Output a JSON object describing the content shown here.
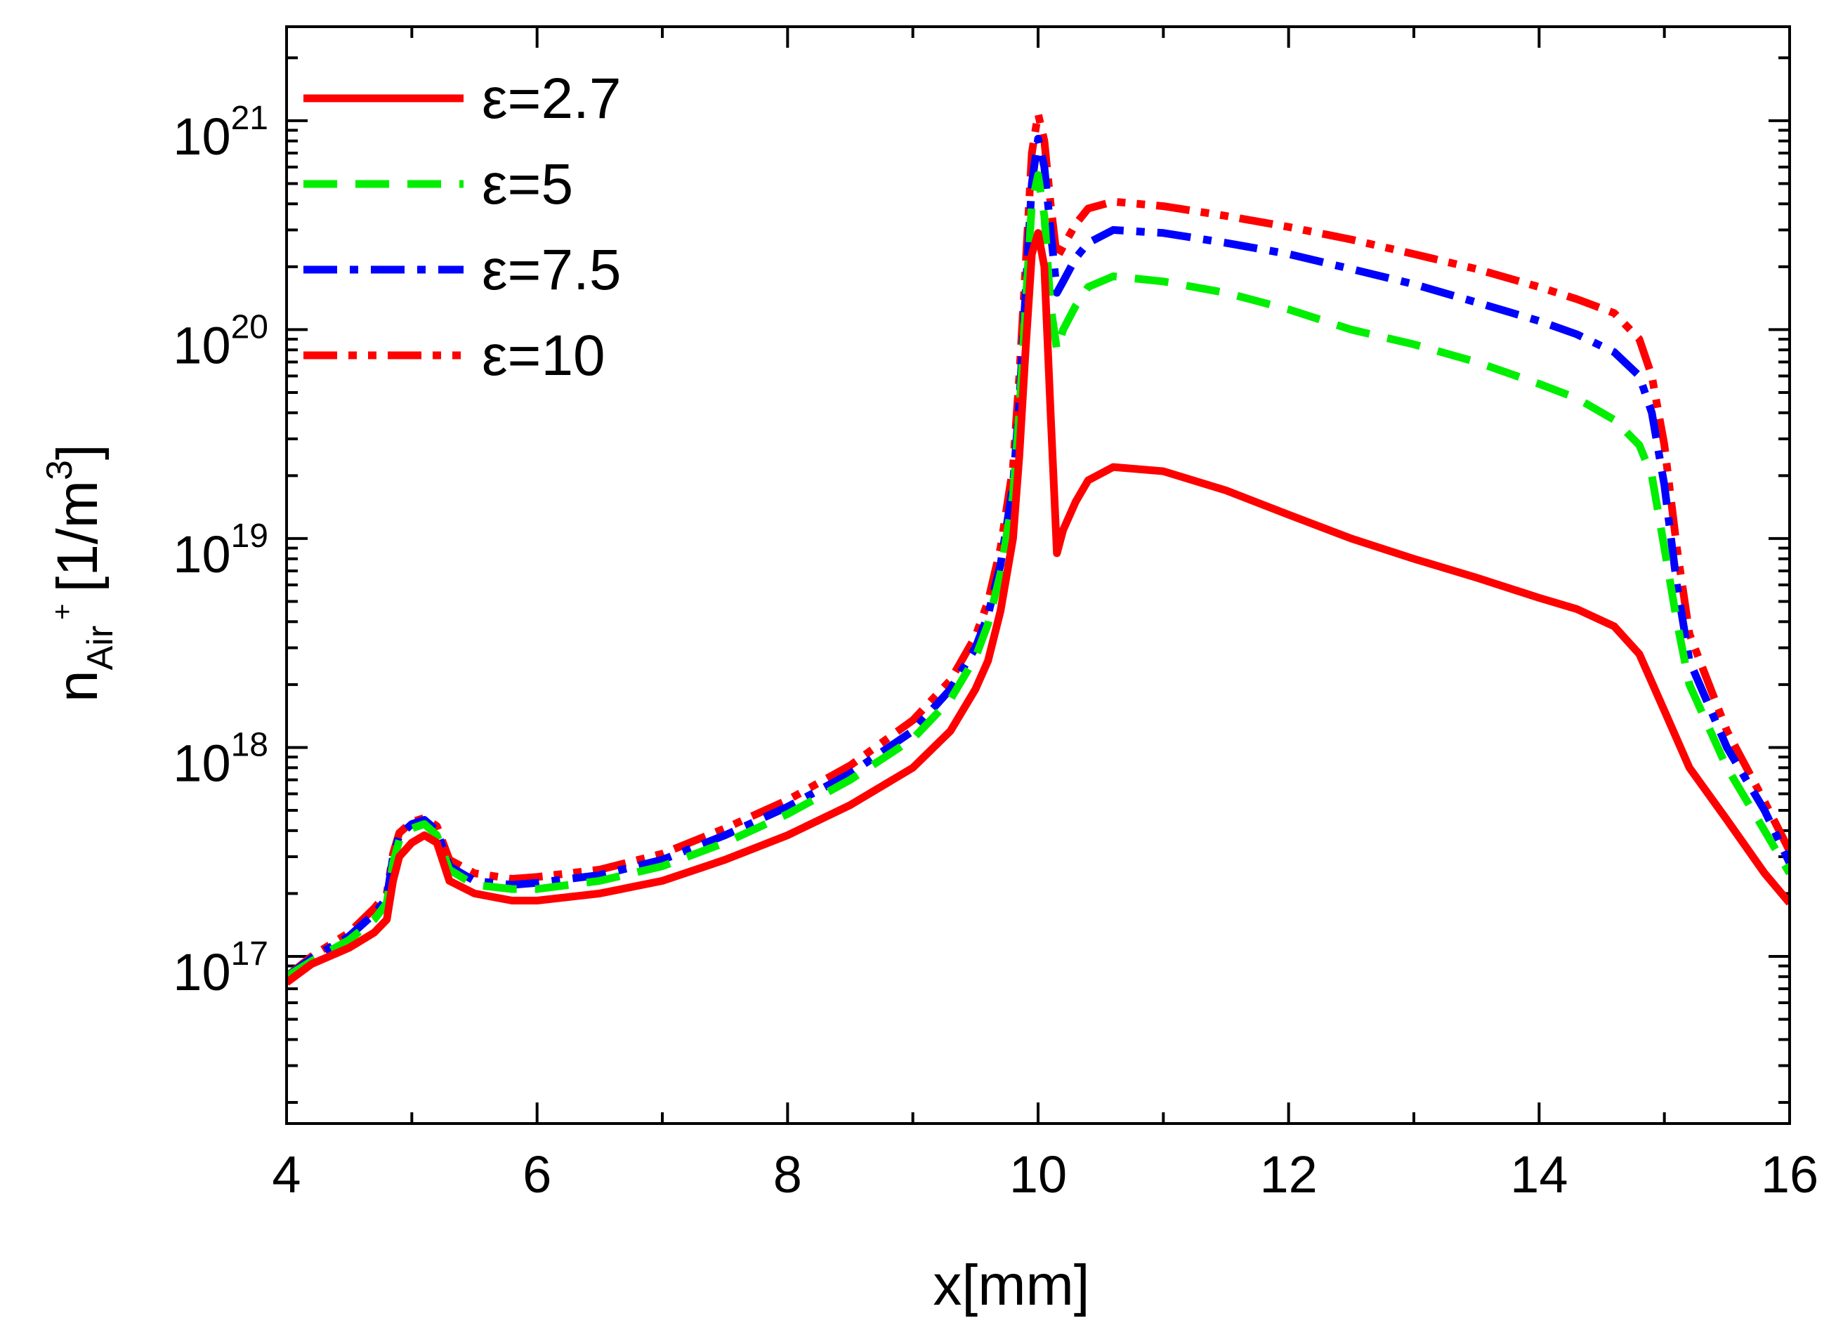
{
  "chart_data": {
    "type": "line",
    "title": "",
    "xlabel": "x[mm]",
    "ylabel": {
      "main": "n",
      "subscript": "Air",
      "superscript": "+",
      "units_prefix": "[1/m",
      "units_exponent": "3",
      "units_suffix": "]"
    },
    "xlim": [
      4,
      16
    ],
    "ylim_log10": [
      16.2,
      21.45
    ],
    "yscale": "log",
    "x_ticks": [
      {
        "value": 4,
        "label": "4"
      },
      {
        "value": 6,
        "label": "6"
      },
      {
        "value": 8,
        "label": "8"
      },
      {
        "value": 10,
        "label": "10"
      },
      {
        "value": 12,
        "label": "12"
      },
      {
        "value": 14,
        "label": "14"
      },
      {
        "value": 16,
        "label": "16"
      }
    ],
    "y_ticks": [
      {
        "exp": 17,
        "base": "10",
        "power": "17"
      },
      {
        "exp": 18,
        "base": "10",
        "power": "18"
      },
      {
        "exp": 19,
        "base": "10",
        "power": "19"
      },
      {
        "exp": 20,
        "base": "10",
        "power": "20"
      },
      {
        "exp": 21,
        "base": "10",
        "power": "21"
      }
    ],
    "grid": false,
    "legend": "top-left",
    "series": [
      {
        "name": "ε=2.7",
        "color": "#ff0000",
        "dash": "solid",
        "x": [
          4.0,
          4.2,
          4.5,
          4.7,
          4.8,
          4.85,
          4.9,
          5.0,
          5.1,
          5.2,
          5.3,
          5.5,
          5.8,
          6.0,
          6.5,
          7.0,
          7.5,
          8.0,
          8.5,
          9.0,
          9.3,
          9.5,
          9.6,
          9.7,
          9.8,
          9.85,
          9.9,
          9.95,
          10.0,
          10.05,
          10.1,
          10.15,
          10.2,
          10.3,
          10.4,
          10.6,
          11.0,
          11.5,
          12.0,
          12.5,
          13.0,
          13.5,
          14.0,
          14.3,
          14.6,
          14.8,
          15.0,
          15.2,
          15.5,
          15.8,
          16.0
        ],
        "y": [
          7.5e+16,
          9.2e+16,
          1.1e+17,
          1.3e+17,
          1.5e+17,
          2.3e+17,
          3e+17,
          3.5e+17,
          3.8e+17,
          3.5e+17,
          2.3e+17,
          2e+17,
          1.85e+17,
          1.85e+17,
          2e+17,
          2.3e+17,
          2.9e+17,
          3.8e+17,
          5.3e+17,
          8e+17,
          1.2e+18,
          1.9e+18,
          2.6e+18,
          4.5e+18,
          1e+19,
          2.5e+19,
          8e+19,
          2.3e+20,
          2.9e+20,
          2e+20,
          4e+19,
          8.5e+18,
          1.1e+19,
          1.5e+19,
          1.9e+19,
          2.2e+19,
          2.1e+19,
          1.7e+19,
          1.3e+19,
          1e+19,
          8e+18,
          6.5e+18,
          5.2e+18,
          4.6e+18,
          3.8e+18,
          2.8e+18,
          1.5e+18,
          8e+17,
          4.5e+17,
          2.5e+17,
          1.8e+17
        ]
      },
      {
        "name": "ε=5",
        "color": "#00ee00",
        "dash": "dashed",
        "x": [
          4.0,
          4.2,
          4.5,
          4.7,
          4.8,
          4.85,
          4.9,
          5.0,
          5.1,
          5.2,
          5.3,
          5.5,
          5.8,
          6.0,
          6.5,
          7.0,
          7.5,
          8.0,
          8.5,
          9.0,
          9.3,
          9.5,
          9.6,
          9.7,
          9.8,
          9.85,
          9.9,
          9.95,
          10.0,
          10.05,
          10.1,
          10.15,
          10.2,
          10.3,
          10.4,
          10.6,
          11.0,
          11.5,
          12.0,
          12.5,
          13.0,
          13.5,
          14.0,
          14.3,
          14.6,
          14.8,
          14.9,
          15.0,
          15.1,
          15.2,
          15.5,
          15.8,
          16.0
        ],
        "y": [
          8e+16,
          9.5e+16,
          1.2e+17,
          1.5e+17,
          1.8e+17,
          2.8e+17,
          3.6e+17,
          4.1e+17,
          4.3e+17,
          3.8e+17,
          2.6e+17,
          2.2e+17,
          2.1e+17,
          2.1e+17,
          2.3e+17,
          2.7e+17,
          3.5e+17,
          4.8e+17,
          7e+17,
          1.1e+18,
          1.7e+18,
          2.7e+18,
          3.9e+18,
          6.8e+18,
          1.6e+19,
          4e+19,
          1.3e+20,
          4e+20,
          5.5e+20,
          3.5e+20,
          1.3e+20,
          8e+19,
          1e+20,
          1.3e+20,
          1.6e+20,
          1.8e+20,
          1.7e+20,
          1.5e+20,
          1.25e+20,
          1e+20,
          8.5e+19,
          7e+19,
          5.5e+19,
          4.7e+19,
          3.7e+19,
          2.8e+19,
          2e+19,
          9e+18,
          4e+18,
          2e+18,
          8e+17,
          4e+17,
          2.5e+17
        ]
      },
      {
        "name": "ε=7.5",
        "color": "#0000ff",
        "dash": "dashdot",
        "x": [
          4.0,
          4.2,
          4.5,
          4.7,
          4.8,
          4.85,
          4.9,
          5.0,
          5.1,
          5.2,
          5.3,
          5.5,
          5.8,
          6.0,
          6.5,
          7.0,
          7.5,
          8.0,
          8.5,
          9.0,
          9.3,
          9.5,
          9.6,
          9.7,
          9.8,
          9.85,
          9.9,
          9.95,
          10.0,
          10.05,
          10.1,
          10.15,
          10.2,
          10.3,
          10.4,
          10.6,
          11.0,
          11.5,
          12.0,
          12.5,
          13.0,
          13.5,
          14.0,
          14.3,
          14.6,
          14.8,
          14.9,
          15.0,
          15.1,
          15.2,
          15.5,
          15.8,
          16.0
        ],
        "y": [
          8e+16,
          9.8e+16,
          1.25e+17,
          1.6e+17,
          1.9e+17,
          3e+17,
          3.8e+17,
          4.3e+17,
          4.5e+17,
          4e+17,
          2.7e+17,
          2.3e+17,
          2.2e+17,
          2.25e+17,
          2.45e+17,
          2.9e+17,
          3.8e+17,
          5.2e+17,
          7.5e+17,
          1.2e+18,
          1.9e+18,
          3e+18,
          4.3e+18,
          7.5e+18,
          1.8e+19,
          4.5e+19,
          1.5e+20,
          5e+20,
          8.2e+20,
          6e+20,
          3e+20,
          1.5e+20,
          1.7e+20,
          2.2e+20,
          2.6e+20,
          3e+20,
          2.9e+20,
          2.6e+20,
          2.3e+20,
          1.95e+20,
          1.65e+20,
          1.35e+20,
          1.1e+20,
          9.5e+19,
          7.8e+19,
          6e+19,
          4e+19,
          1.8e+19,
          6e+18,
          2.6e+18,
          1e+18,
          5e+17,
          2.8e+17
        ]
      },
      {
        "name": "ε=10",
        "color": "#ff0000",
        "dash": "dashdotdot",
        "x": [
          4.0,
          4.2,
          4.5,
          4.7,
          4.8,
          4.85,
          4.9,
          5.0,
          5.1,
          5.2,
          5.3,
          5.5,
          5.8,
          6.0,
          6.5,
          7.0,
          7.5,
          8.0,
          8.5,
          9.0,
          9.3,
          9.5,
          9.6,
          9.7,
          9.8,
          9.85,
          9.9,
          9.95,
          10.0,
          10.05,
          10.1,
          10.15,
          10.2,
          10.3,
          10.4,
          10.6,
          11.0,
          11.5,
          12.0,
          12.5,
          13.0,
          13.5,
          14.0,
          14.3,
          14.6,
          14.8,
          14.9,
          15.0,
          15.1,
          15.2,
          15.5,
          15.8,
          16.0
        ],
        "y": [
          8e+16,
          1e+17,
          1.3e+17,
          1.7e+17,
          2e+17,
          3.1e+17,
          3.9e+17,
          4.4e+17,
          4.6e+17,
          4.2e+17,
          2.9e+17,
          2.5e+17,
          2.35e+17,
          2.4e+17,
          2.6e+17,
          3.1e+17,
          4.1e+17,
          5.6e+17,
          8.2e+17,
          1.35e+18,
          2.1e+18,
          3.4e+18,
          5e+18,
          9e+18,
          2.2e+19,
          6e+19,
          2e+20,
          7e+20,
          1.08e+21,
          8e+20,
          4e+20,
          2.2e+20,
          2.5e+20,
          3.2e+20,
          3.8e+20,
          4.1e+20,
          3.9e+20,
          3.5e+20,
          3.1e+20,
          2.7e+20,
          2.3e+20,
          1.95e+20,
          1.6e+20,
          1.4e+20,
          1.2e+20,
          9e+19,
          6e+19,
          2.8e+19,
          9e+18,
          3.5e+18,
          1.2e+18,
          5.5e+17,
          3.2e+17
        ]
      }
    ]
  }
}
